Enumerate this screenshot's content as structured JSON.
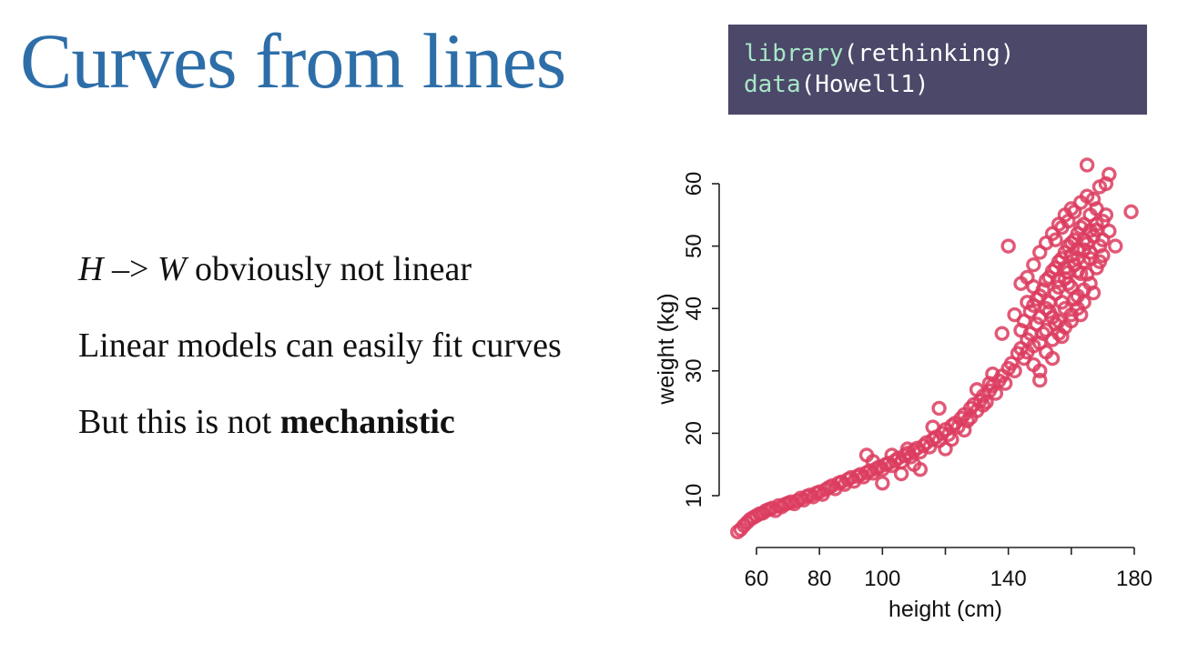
{
  "slide": {
    "title": "Curves from lines"
  },
  "code": {
    "line1_fn": "library",
    "line1_arg": "(rethinking)",
    "line2_fn": "data",
    "line2_arg": "(Howell1)"
  },
  "bullets": {
    "b1_h": "H",
    "b1_arrow": " –> ",
    "b1_w": "W",
    "b1_rest": " obviously not linear",
    "b2": "Linear models can easily fit curves",
    "b3_pre": "But this is not ",
    "b3_bold": "mechanistic"
  },
  "colors": {
    "title": "#2d6ea8",
    "code_bg": "#4b4869",
    "code_fn": "#a8e6c6",
    "points": "#dc3c5f"
  },
  "chart_data": {
    "type": "scatter",
    "xlabel": "height (cm)",
    "ylabel": "weight (kg)",
    "xlim": [
      53,
      180
    ],
    "ylim": [
      3,
      63
    ],
    "xticks": [
      60,
      80,
      100,
      120,
      140,
      160,
      180
    ],
    "xtick_labels": [
      "60",
      "80",
      "100",
      "",
      "140",
      "",
      "180"
    ],
    "yticks": [
      10,
      20,
      30,
      40,
      50,
      60
    ],
    "ytick_labels": [
      "10",
      "20",
      "30",
      "40",
      "50",
      "60"
    ],
    "grid": false,
    "marker": "open-circle",
    "points": [
      [
        54,
        4.2
      ],
      [
        55,
        4.6
      ],
      [
        56,
        5.2
      ],
      [
        57,
        5.7
      ],
      [
        58,
        6.2
      ],
      [
        59,
        6.5
      ],
      [
        60,
        6.8
      ],
      [
        61,
        7.1
      ],
      [
        62,
        7.2
      ],
      [
        63,
        7.6
      ],
      [
        64,
        7.8
      ],
      [
        65,
        8.0
      ],
      [
        66,
        7.6
      ],
      [
        67,
        8.4
      ],
      [
        68,
        8.2
      ],
      [
        69,
        8.6
      ],
      [
        70,
        8.8
      ],
      [
        71,
        9.0
      ],
      [
        72,
        8.7
      ],
      [
        73,
        9.2
      ],
      [
        74,
        9.6
      ],
      [
        75,
        9.3
      ],
      [
        76,
        9.9
      ],
      [
        77,
        10.1
      ],
      [
        78,
        9.8
      ],
      [
        79,
        10.4
      ],
      [
        80,
        10.6
      ],
      [
        81,
        10.2
      ],
      [
        82,
        11.0
      ],
      [
        83,
        11.3
      ],
      [
        84,
        11.6
      ],
      [
        85,
        11.1
      ],
      [
        86,
        12.0
      ],
      [
        87,
        12.2
      ],
      [
        88,
        11.8
      ],
      [
        89,
        12.6
      ],
      [
        90,
        12.9
      ],
      [
        91,
        12.3
      ],
      [
        92,
        13.1
      ],
      [
        93,
        13.4
      ],
      [
        94,
        13.0
      ],
      [
        95,
        13.7
      ],
      [
        96,
        14.0
      ],
      [
        97,
        13.6
      ],
      [
        98,
        14.3
      ],
      [
        99,
        14.6
      ],
      [
        100,
        14.2
      ],
      [
        101,
        15.0
      ],
      [
        102,
        15.2
      ],
      [
        103,
        14.8
      ],
      [
        104,
        15.6
      ],
      [
        105,
        16.0
      ],
      [
        106,
        15.4
      ],
      [
        107,
        16.4
      ],
      [
        108,
        16.8
      ],
      [
        109,
        16.2
      ],
      [
        110,
        17.2
      ],
      [
        111,
        17.6
      ],
      [
        112,
        17.0
      ],
      [
        113,
        18.0
      ],
      [
        114,
        18.5
      ],
      [
        115,
        17.8
      ],
      [
        116,
        19.0
      ],
      [
        117,
        19.4
      ],
      [
        118,
        18.8
      ],
      [
        119,
        20.0
      ],
      [
        120,
        20.6
      ],
      [
        121,
        19.8
      ],
      [
        122,
        21.2
      ],
      [
        123,
        21.6
      ],
      [
        124,
        21.0
      ],
      [
        125,
        22.4
      ],
      [
        126,
        23.0
      ],
      [
        127,
        22.0
      ],
      [
        128,
        24.0
      ],
      [
        129,
        24.6
      ],
      [
        130,
        23.6
      ],
      [
        131,
        25.2
      ],
      [
        132,
        26.0
      ],
      [
        133,
        25.0
      ],
      [
        134,
        26.8
      ],
      [
        135,
        27.6
      ],
      [
        136,
        26.4
      ],
      [
        137,
        28.4
      ],
      [
        138,
        29.2
      ],
      [
        139,
        28.0
      ],
      [
        140,
        30.4
      ],
      [
        141,
        31.2
      ],
      [
        142,
        30.0
      ],
      [
        143,
        32.8
      ],
      [
        144,
        33.6
      ],
      [
        145,
        32.0
      ],
      [
        146,
        35.0
      ],
      [
        147,
        36.0
      ],
      [
        148,
        34.0
      ],
      [
        149,
        37.5
      ],
      [
        150,
        38.6
      ],
      [
        151,
        36.0
      ],
      [
        152,
        40.0
      ],
      [
        153,
        41.0
      ],
      [
        154,
        38.6
      ],
      [
        155,
        42.4
      ],
      [
        156,
        43.4
      ],
      [
        157,
        41.0
      ],
      [
        158,
        44.8
      ],
      [
        159,
        45.8
      ],
      [
        160,
        43.4
      ],
      [
        161,
        47.0
      ],
      [
        162,
        48.0
      ],
      [
        163,
        45.6
      ],
      [
        164,
        49.4
      ],
      [
        165,
        50.4
      ],
      [
        166,
        48.0
      ],
      [
        167,
        51.6
      ],
      [
        168,
        52.6
      ],
      [
        169,
        50.0
      ],
      [
        170,
        54.0
      ],
      [
        171,
        55.0
      ],
      [
        172,
        52.4
      ],
      [
        150,
        42.0
      ],
      [
        152,
        44.5
      ],
      [
        154,
        46.0
      ],
      [
        156,
        47.5
      ],
      [
        158,
        49.0
      ],
      [
        160,
        50.5
      ],
      [
        162,
        52.0
      ],
      [
        164,
        53.5
      ],
      [
        166,
        55.0
      ],
      [
        168,
        56.0
      ],
      [
        148,
        40.5
      ],
      [
        150,
        34.5
      ],
      [
        152,
        36.5
      ],
      [
        154,
        35.0
      ],
      [
        156,
        38.0
      ],
      [
        158,
        40.0
      ],
      [
        160,
        39.0
      ],
      [
        162,
        42.0
      ],
      [
        164,
        43.0
      ],
      [
        166,
        44.0
      ],
      [
        145,
        38.0
      ],
      [
        147,
        39.5
      ],
      [
        149,
        41.5
      ],
      [
        151,
        43.0
      ],
      [
        153,
        45.0
      ],
      [
        155,
        46.5
      ],
      [
        157,
        48.0
      ],
      [
        159,
        50.0
      ],
      [
        161,
        51.0
      ],
      [
        163,
        53.0
      ],
      [
        146,
        33.0
      ],
      [
        148,
        31.0
      ],
      [
        150,
        30.0
      ],
      [
        152,
        33.0
      ],
      [
        154,
        32.0
      ],
      [
        156,
        36.0
      ],
      [
        158,
        37.0
      ],
      [
        160,
        38.0
      ],
      [
        162,
        40.0
      ],
      [
        164,
        41.0
      ],
      [
        155,
        51.0
      ],
      [
        157,
        53.0
      ],
      [
        159,
        54.0
      ],
      [
        161,
        55.5
      ],
      [
        163,
        57.0
      ],
      [
        165,
        58.0
      ],
      [
        167,
        57.5
      ],
      [
        169,
        59.5
      ],
      [
        171,
        60.0
      ],
      [
        140,
        50.0
      ],
      [
        165,
        63.0
      ],
      [
        172,
        61.5
      ],
      [
        179,
        55.5
      ],
      [
        170,
        51.0
      ],
      [
        174,
        50.0
      ],
      [
        150,
        28.5
      ],
      [
        135,
        29.5
      ],
      [
        118,
        24.0
      ],
      [
        100,
        12.0
      ],
      [
        110,
        15.0
      ],
      [
        112,
        14.2
      ],
      [
        120,
        17.5
      ],
      [
        128,
        22.5
      ],
      [
        132,
        24.5
      ],
      [
        138,
        36.0
      ],
      [
        142,
        39.0
      ],
      [
        144,
        44.0
      ],
      [
        146,
        45.0
      ],
      [
        148,
        47.0
      ],
      [
        150,
        49.0
      ],
      [
        152,
        50.5
      ],
      [
        154,
        52.0
      ],
      [
        156,
        53.5
      ],
      [
        158,
        55.0
      ],
      [
        160,
        56.0
      ],
      [
        162,
        46.0
      ],
      [
        164,
        47.5
      ],
      [
        166,
        49.0
      ],
      [
        168,
        46.5
      ],
      [
        153,
        39.5
      ],
      [
        155,
        37.5
      ],
      [
        157,
        35.5
      ],
      [
        159,
        44.0
      ],
      [
        161,
        41.5
      ],
      [
        163,
        39.0
      ],
      [
        165,
        45.5
      ],
      [
        167,
        42.5
      ],
      [
        169,
        47.5
      ],
      [
        170,
        48.5
      ],
      [
        156,
        44.5
      ],
      [
        158,
        46.5
      ],
      [
        160,
        48.5
      ],
      [
        162,
        49.5
      ],
      [
        164,
        51.0
      ],
      [
        166,
        52.5
      ],
      [
        168,
        53.5
      ],
      [
        146,
        41.0
      ],
      [
        148,
        43.5
      ],
      [
        144,
        36.5
      ],
      [
        95,
        16.5
      ],
      [
        97,
        15.5
      ],
      [
        103,
        16.5
      ],
      [
        106,
        13.5
      ],
      [
        108,
        17.5
      ],
      [
        116,
        21.0
      ],
      [
        122,
        19.0
      ],
      [
        126,
        20.5
      ],
      [
        130,
        27.0
      ],
      [
        134,
        28.0
      ]
    ]
  }
}
